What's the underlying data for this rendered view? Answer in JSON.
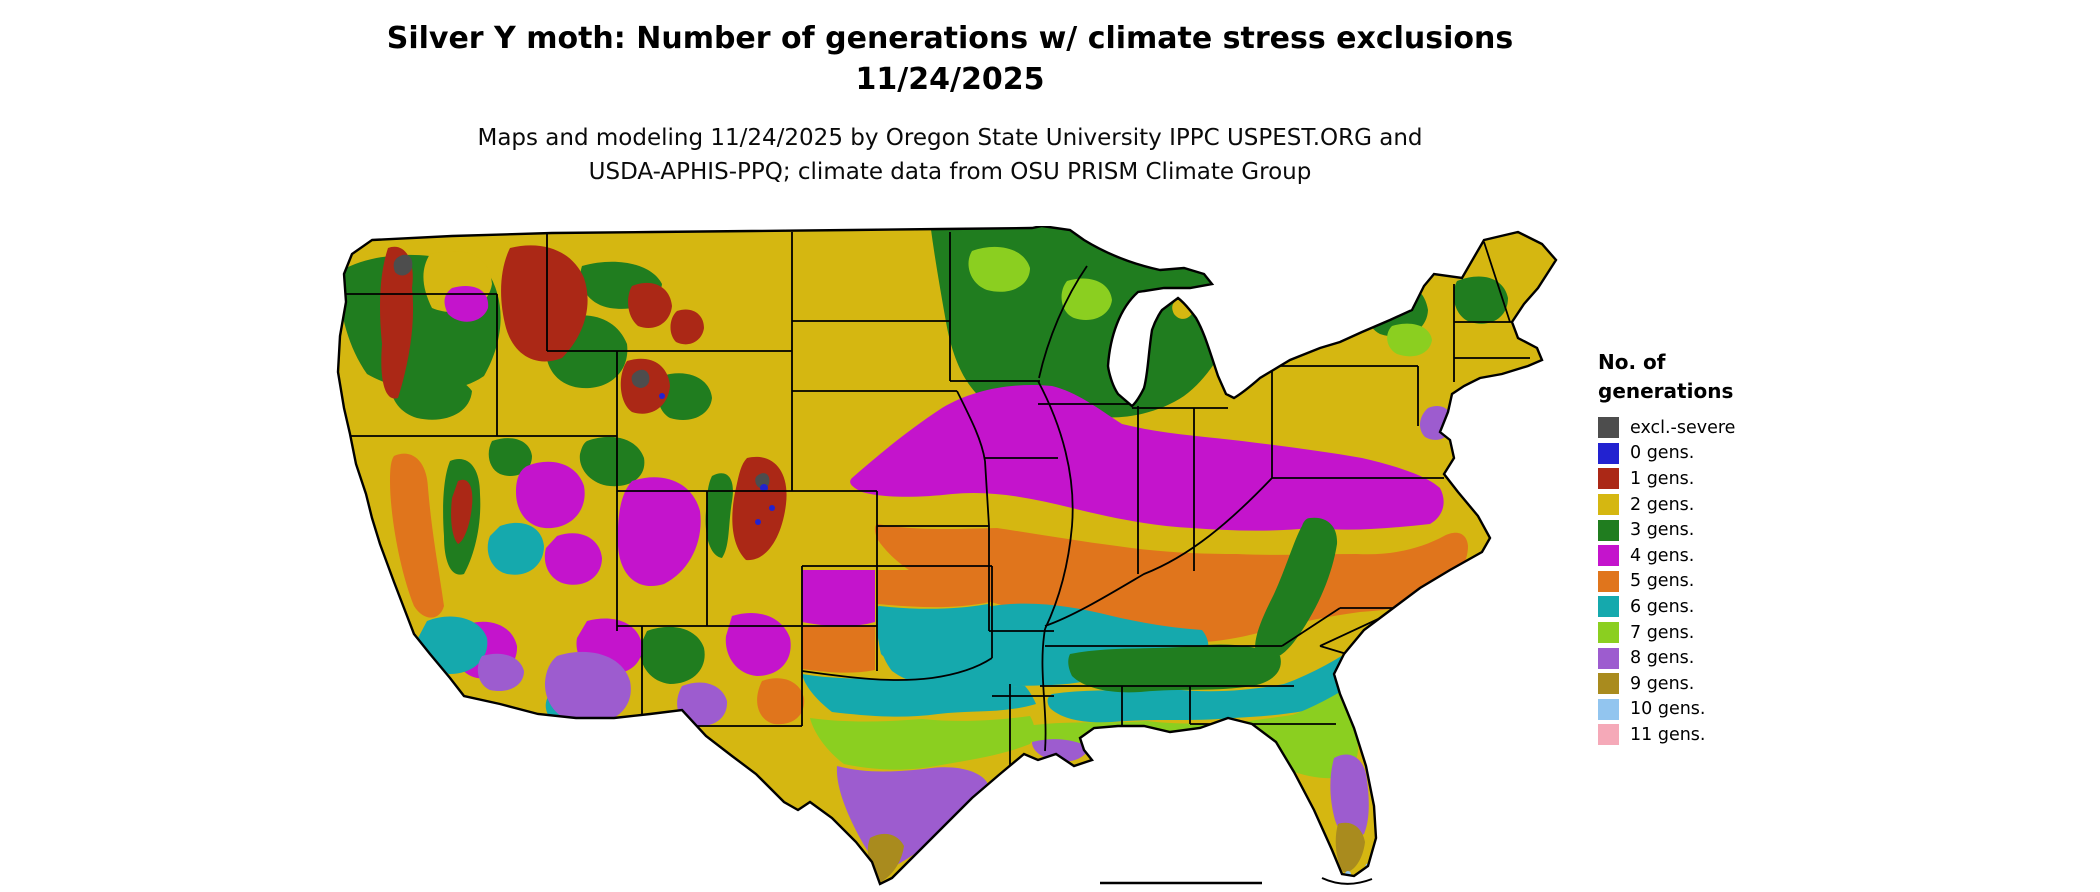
{
  "title": {
    "line1": "Silver Y moth: Number of generations w/ climate stress exclusions",
    "line2": "11/24/2025"
  },
  "subtitle": {
    "line1": "Maps and modeling 11/24/2025 by Oregon State University IPPC USPEST.ORG and",
    "line2": "USDA-APHIS-PPQ; climate data from OSU PRISM Climate Group"
  },
  "legend": {
    "heading_line1": "No. of",
    "heading_line2": "generations",
    "items": [
      {
        "key": "excl",
        "label": "excl.-severe",
        "color": "#4d4d4d"
      },
      {
        "key": "0",
        "label": "0 gens.",
        "color": "#2222d0"
      },
      {
        "key": "1",
        "label": "1 gens.",
        "color": "#ab2816"
      },
      {
        "key": "2",
        "label": "2 gens.",
        "color": "#d5b711"
      },
      {
        "key": "3",
        "label": "3 gens.",
        "color": "#207d1f"
      },
      {
        "key": "4",
        "label": "4 gens.",
        "color": "#c414cc"
      },
      {
        "key": "5",
        "label": "5 gens.",
        "color": "#e0751c"
      },
      {
        "key": "6",
        "label": "6 gens.",
        "color": "#15a9ad"
      },
      {
        "key": "7",
        "label": "7 gens.",
        "color": "#8bcf20"
      },
      {
        "key": "8",
        "label": "8 gens.",
        "color": "#9d5ccf"
      },
      {
        "key": "9",
        "label": "9 gens.",
        "color": "#a98b1e"
      },
      {
        "key": "10",
        "label": "10 gens.",
        "color": "#92c5ef"
      },
      {
        "key": "11",
        "label": "11 gens.",
        "color": "#f5a9b8"
      }
    ]
  },
  "map": {
    "name": "Continental United States generations raster",
    "border_color": "#000000",
    "water_color": "#ffffff"
  }
}
